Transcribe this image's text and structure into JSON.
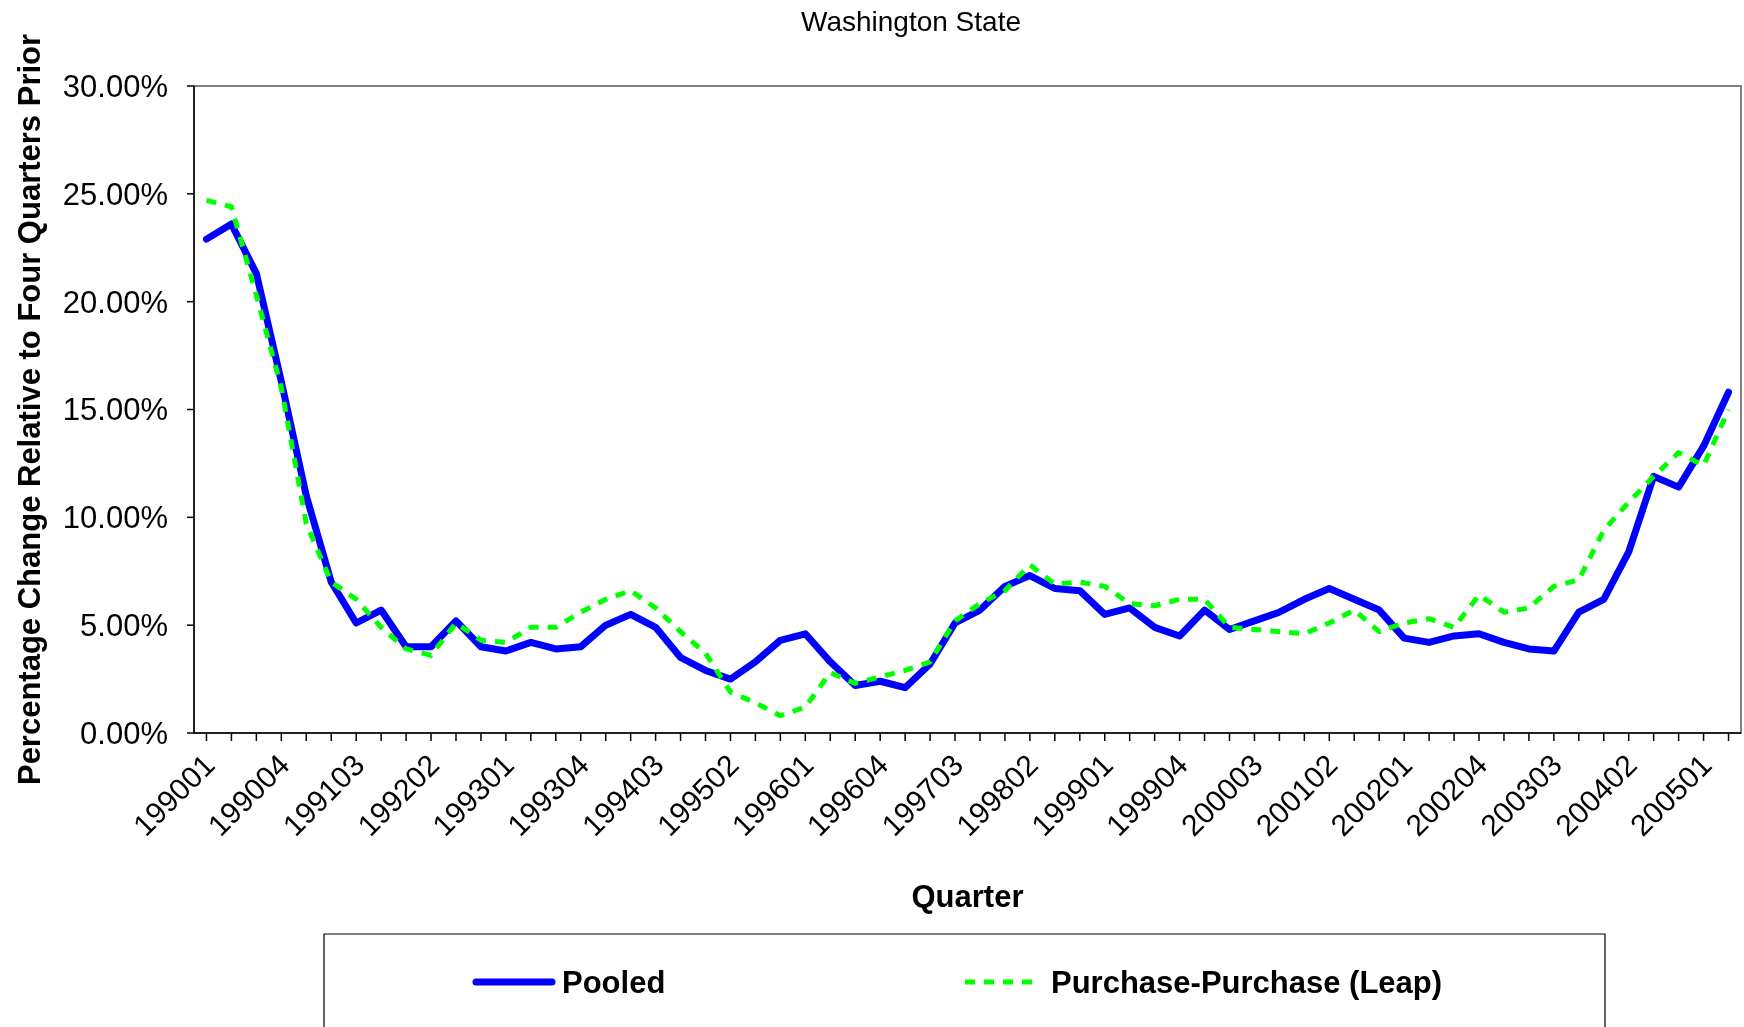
{
  "chart_data": {
    "type": "line",
    "title": "Washington State",
    "xlabel": "Quarter",
    "ylabel": "Percentage Change Relative to Four Quarters Prior",
    "categories": [
      "199001",
      null,
      null,
      "199004",
      null,
      null,
      "199103",
      null,
      null,
      "199202",
      null,
      null,
      "199301",
      null,
      null,
      "199304",
      null,
      null,
      "199403",
      null,
      null,
      "199502",
      null,
      null,
      "199601",
      null,
      null,
      "199604",
      null,
      null,
      "199703",
      null,
      null,
      "199802",
      null,
      null,
      "199901",
      null,
      null,
      "199904",
      null,
      null,
      "200003",
      null,
      null,
      "200102",
      null,
      null,
      "200201",
      null,
      null,
      "200204",
      null,
      null,
      "200303",
      null,
      null,
      "200402",
      null,
      null,
      "200501",
      null
    ],
    "series": [
      {
        "name": "Pooled",
        "color": "#0000ff",
        "line_style": "solid",
        "values": [
          22.9,
          23.6,
          21.3,
          16.3,
          11.0,
          7.0,
          5.1,
          5.7,
          4.0,
          4.0,
          5.2,
          4.0,
          3.8,
          4.2,
          3.9,
          4.0,
          5.0,
          5.5,
          4.9,
          3.5,
          2.9,
          2.5,
          3.3,
          4.3,
          4.6,
          3.3,
          2.2,
          2.4,
          2.1,
          3.2,
          5.1,
          5.7,
          6.8,
          7.3,
          6.7,
          6.6,
          5.5,
          5.8,
          4.9,
          4.5,
          5.7,
          4.8,
          5.2,
          5.6,
          6.2,
          6.7,
          6.2,
          5.7,
          4.4,
          4.2,
          4.5,
          4.6,
          4.2,
          3.9,
          3.8,
          5.6,
          6.2,
          8.4,
          11.9,
          11.4,
          13.3,
          15.8
        ]
      },
      {
        "name": "Purchase-Purchase (Leap)",
        "color": "#00ff00",
        "line_style": "dashed",
        "values": [
          24.7,
          24.4,
          20.3,
          16.0,
          9.7,
          7.0,
          6.2,
          4.9,
          3.9,
          3.6,
          5.1,
          4.3,
          4.2,
          4.9,
          4.9,
          5.6,
          6.2,
          6.6,
          5.8,
          4.7,
          3.7,
          1.9,
          1.4,
          0.8,
          1.2,
          2.8,
          2.3,
          2.6,
          2.9,
          3.3,
          5.2,
          6.0,
          6.6,
          7.8,
          6.9,
          7.0,
          6.8,
          6.0,
          5.9,
          6.2,
          6.2,
          4.9,
          4.8,
          4.7,
          4.6,
          5.1,
          5.7,
          4.7,
          5.1,
          5.3,
          4.9,
          6.4,
          5.6,
          5.8,
          6.8,
          7.1,
          9.4,
          10.7,
          11.9,
          13.0,
          12.4,
          15.0
        ]
      }
    ],
    "ylim": [
      0,
      30
    ],
    "yticks": [
      {
        "value": 0,
        "label": "0.00%"
      },
      {
        "value": 5,
        "label": "5.00%"
      },
      {
        "value": 10,
        "label": "10.00%"
      },
      {
        "value": 15,
        "label": "15.00%"
      },
      {
        "value": 20,
        "label": "20.00%"
      },
      {
        "value": 25,
        "label": "25.00%"
      },
      {
        "value": 30,
        "label": "30.00%"
      }
    ],
    "legend": "bottom"
  }
}
